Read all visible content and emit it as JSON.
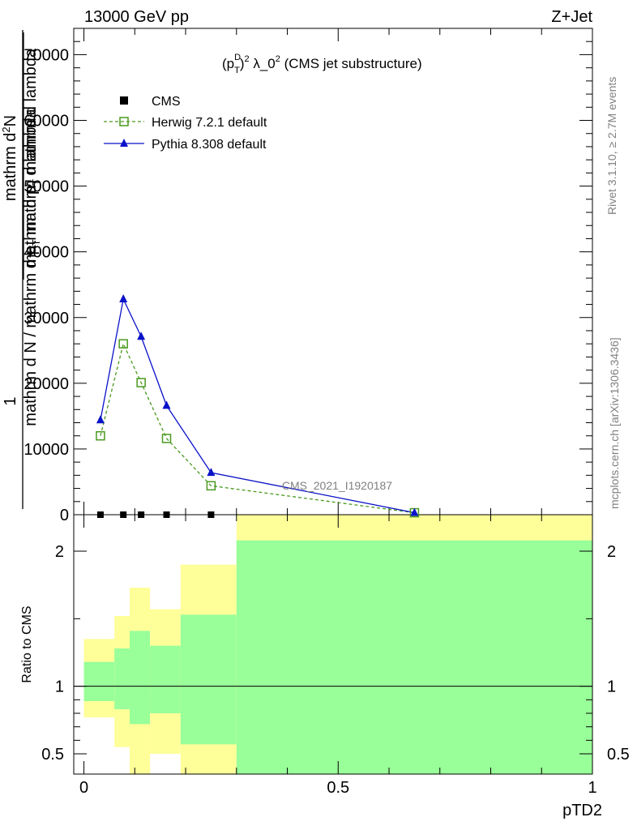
{
  "header": {
    "energy": "13000 GeV pp",
    "process": "Z+Jet"
  },
  "side": {
    "rivet": "Rivet 3.1.10, ≥ 2.7M events",
    "mcplots": "mcplots.cern.ch [arXiv:1306.3436]"
  },
  "title": {
    "pre": "(p",
    "sup1": "D",
    "sub1": "T",
    "mid": ")",
    "sup2": "2",
    "post1": " λ_0",
    "sup3": "2",
    "post2": " (CMS jet substructure)"
  },
  "ylabel_main": {
    "num": "1",
    "den": "mathrm d N / mathrm d p",
    "den_sub": "T",
    "den2": " mathrm d lambda",
    "overlay_num": "mathrm d",
    "overlay_num_sup": "2",
    "overlay_num2": "N",
    "overlay_den": "mathrm d p",
    "overlay_den_sub": "T",
    "overlay_den2": " mathrm d lambda"
  },
  "ylabel_ratio": "Ratio to CMS",
  "watermark": "CMS_2021_I1920187",
  "colors": {
    "herwig": "#4a9a1e",
    "pythia": "#0a12c8",
    "cms": "#000000",
    "band_yellow": "#ffff99",
    "band_green": "#99ff99"
  },
  "chart_data": [
    {
      "type": "line",
      "panel": "main",
      "xlabel": "pTD2",
      "ylim": [
        0,
        74000
      ],
      "xlim": [
        -0.02,
        1.0
      ],
      "yticks": [
        0,
        10000,
        20000,
        30000,
        40000,
        50000,
        60000,
        70000
      ],
      "ytick_labels": [
        "0",
        "10000",
        "20000",
        "30000",
        "40000",
        "50000",
        "60000",
        "70000"
      ],
      "legend_position": "top-left",
      "series": [
        {
          "name": "CMS",
          "marker": "square",
          "x": [
            0.0325,
            0.0775,
            0.1125,
            0.1625,
            0.25
          ],
          "y": [
            0,
            0,
            0,
            0,
            0
          ]
        },
        {
          "name": "Herwig 7.2.1 default",
          "marker": "open-square",
          "line": "dashed",
          "x": [
            0.0325,
            0.0775,
            0.1125,
            0.1625,
            0.25,
            0.65
          ],
          "y": [
            12000,
            26000,
            20100,
            11600,
            4400,
            300
          ]
        },
        {
          "name": "Pythia 8.308 default",
          "marker": "triangle",
          "line": "solid",
          "x": [
            0.0325,
            0.0775,
            0.1125,
            0.1625,
            0.25,
            0.65
          ],
          "y": [
            14400,
            32800,
            27100,
            16600,
            6400,
            300
          ]
        }
      ]
    },
    {
      "type": "area",
      "panel": "ratio",
      "ylabel": "Ratio to CMS",
      "xlabel": "pTD2",
      "ylim": [
        0.35,
        2.27
      ],
      "xlim": [
        -0.02,
        1.0
      ],
      "yticks": [
        0.5,
        1,
        2
      ],
      "ytick_labels": [
        "0.5",
        "1",
        "2"
      ],
      "xticks": [
        0,
        0.5,
        1
      ],
      "xtick_labels": [
        "0",
        "0.5",
        "1"
      ],
      "reference_line": 1,
      "bins": [
        {
          "x0": 0.0,
          "x1": 0.06,
          "yellow": [
            0.77,
            1.35
          ],
          "green": [
            0.89,
            1.18
          ]
        },
        {
          "x0": 0.06,
          "x1": 0.09,
          "yellow": [
            0.55,
            1.52
          ],
          "green": [
            0.83,
            1.28
          ]
        },
        {
          "x0": 0.09,
          "x1": 0.13,
          "yellow": [
            0.35,
            1.73
          ],
          "green": [
            0.72,
            1.41
          ]
        },
        {
          "x0": 0.13,
          "x1": 0.19,
          "yellow": [
            0.5,
            1.57
          ],
          "green": [
            0.8,
            1.3
          ]
        },
        {
          "x0": 0.19,
          "x1": 0.3,
          "yellow": [
            0.35,
            1.9
          ],
          "green": [
            0.57,
            1.53
          ]
        },
        {
          "x0": 0.3,
          "x1": 1.0,
          "yellow": [
            0.35,
            2.27
          ],
          "green": [
            0.35,
            2.08
          ]
        }
      ]
    }
  ]
}
